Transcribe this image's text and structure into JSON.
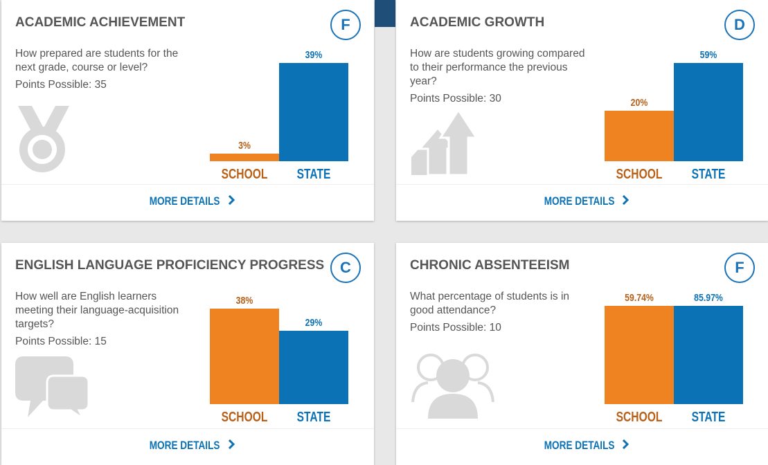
{
  "colors": {
    "school": "#f08321",
    "state": "#0b72b5",
    "grade_ring": "#1a73b8",
    "title": "#555555",
    "icon_gray": "#d9d9d9"
  },
  "cards": [
    {
      "title": "ACADEMIC ACHIEVEMENT",
      "grade": "F",
      "description": "How prepared are students for the next grade, course or level?",
      "points": "Points Possible: 35",
      "icon": "medal-icon",
      "more": "MORE DETAILS",
      "school_label": "SCHOOL",
      "state_label": "STATE",
      "school_value_text": "3%",
      "state_value_text": "39%",
      "school_value": 3,
      "state_value": 39
    },
    {
      "title": "ACADEMIC GROWTH",
      "grade": "D",
      "description": "How are students growing compared to their performance the previous year?",
      "points": "Points Possible: 30",
      "icon": "growth-arrows-icon",
      "more": "MORE DETAILS",
      "school_label": "SCHOOL",
      "state_label": "STATE",
      "school_value_text": "20%",
      "state_value_text": "59%",
      "school_value": 20,
      "state_value": 59
    },
    {
      "title": "ENGLISH LANGUAGE PROFICIENCY PROGRESS",
      "grade": "C",
      "description": "How well are English learners meeting their language-acquisition targets?",
      "points": "Points Possible: 15",
      "icon": "speech-bubbles-icon",
      "more": "MORE DETAILS",
      "school_label": "SCHOOL",
      "state_label": "STATE",
      "school_value_text": "38%",
      "state_value_text": "29%",
      "school_value": 38,
      "state_value": 29
    },
    {
      "title": "CHRONIC ABSENTEEISM",
      "grade": "F",
      "description": "What percentage of students is in good attendance?",
      "points": "Points Possible: 10",
      "icon": "people-group-icon",
      "more": "MORE DETAILS",
      "school_label": "SCHOOL",
      "state_label": "STATE",
      "school_value_text": "59.74%",
      "state_value_text": "85.97%",
      "school_value": 59.74,
      "state_value": 85.97
    }
  ]
}
